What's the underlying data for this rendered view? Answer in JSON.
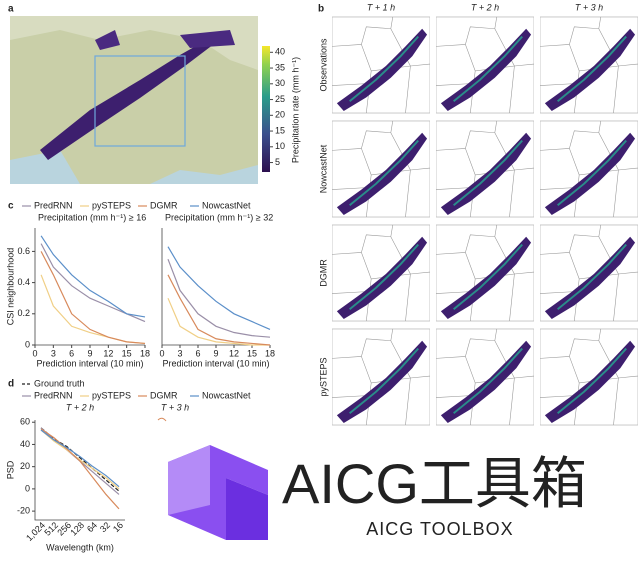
{
  "panels": {
    "a": "a",
    "b": "b",
    "c": "c",
    "d": "d"
  },
  "colorbar": {
    "label": "Precipitation rate (mm h⁻¹)",
    "lim": [
      2,
      42
    ],
    "ticks": [
      5,
      10,
      15,
      20,
      25,
      30,
      35,
      40
    ]
  },
  "columns": [
    "T + 1 h",
    "T + 2 h",
    "T + 3 h"
  ],
  "rows": [
    "Observations",
    "NowcastNet",
    "DGMR",
    "pySTEPS"
  ],
  "panel_d_right_title": "T + 3 h",
  "watermark": {
    "title": "AICG工具箱",
    "subtitle": "AICG TOOLBOX"
  },
  "chart_data": [
    {
      "type": "line",
      "title": "Precipitation (mm h⁻¹) ≥ 16",
      "x_label": "Prediction interval (10 min)",
      "y_label": "CSI neighbourhood",
      "x": [
        1,
        3,
        6,
        9,
        12,
        15,
        18
      ],
      "xlim": [
        0,
        18
      ],
      "xticks": [
        0,
        3,
        6,
        9,
        12,
        15,
        18
      ],
      "ylim": [
        0,
        0.75
      ],
      "yticks": [
        0,
        0.2,
        0.4,
        0.6
      ],
      "series": [
        {
          "name": "PredRNN",
          "color": "#9a8fa8",
          "values": [
            0.65,
            0.5,
            0.38,
            0.3,
            0.25,
            0.2,
            0.15
          ]
        },
        {
          "name": "pySTEPS",
          "color": "#f0cf86",
          "values": [
            0.45,
            0.25,
            0.12,
            0.08,
            0.05,
            0.02,
            0.01
          ]
        },
        {
          "name": "DGMR",
          "color": "#d88a5c",
          "values": [
            0.6,
            0.45,
            0.2,
            0.1,
            0.05,
            0.02,
            0.01
          ]
        },
        {
          "name": "NowcastNet",
          "color": "#5b8fc9",
          "values": [
            0.7,
            0.58,
            0.45,
            0.35,
            0.28,
            0.2,
            0.18
          ]
        }
      ]
    },
    {
      "type": "line",
      "title": "Precipitation (mm h⁻¹) ≥ 32",
      "x_label": "Prediction interval (10 min)",
      "x": [
        1,
        3,
        6,
        9,
        12,
        15,
        18
      ],
      "xlim": [
        0,
        18
      ],
      "xticks": [
        0,
        3,
        6,
        9,
        12,
        15,
        18
      ],
      "ylim": [
        0,
        0.75
      ],
      "series": [
        {
          "name": "PredRNN",
          "color": "#9a8fa8",
          "values": [
            0.55,
            0.35,
            0.2,
            0.12,
            0.08,
            0.06,
            0.05
          ]
        },
        {
          "name": "pySTEPS",
          "color": "#f0cf86",
          "values": [
            0.3,
            0.12,
            0.05,
            0.02,
            0.01,
            0,
            0
          ]
        },
        {
          "name": "DGMR",
          "color": "#d88a5c",
          "values": [
            0.45,
            0.3,
            0.1,
            0.04,
            0.02,
            0.01,
            0
          ]
        },
        {
          "name": "NowcastNet",
          "color": "#5b8fc9",
          "values": [
            0.63,
            0.5,
            0.38,
            0.28,
            0.2,
            0.15,
            0.1
          ]
        }
      ]
    },
    {
      "type": "line",
      "title": "T + 2 h",
      "x_label": "Wavelength (km)",
      "y_label": "PSD",
      "categories": [
        "1,024",
        "512",
        "256",
        "128",
        "64",
        "32",
        "16"
      ],
      "ylim": [
        -28,
        62
      ],
      "yticks": [
        60,
        40,
        20,
        0,
        -20
      ],
      "series": [
        {
          "name": "Ground truth",
          "color": "#222222",
          "dashed": true,
          "values": [
            55,
            45,
            38,
            28,
            18,
            8,
            -2
          ]
        },
        {
          "name": "PredRNN",
          "color": "#9a8fa8",
          "values": [
            55,
            44,
            35,
            25,
            15,
            5,
            -5
          ]
        },
        {
          "name": "pySTEPS",
          "color": "#f0cf86",
          "values": [
            53,
            43,
            35,
            26,
            18,
            10,
            0
          ]
        },
        {
          "name": "DGMR",
          "color": "#d88a5c",
          "values": [
            54,
            46,
            36,
            25,
            10,
            -5,
            -18
          ]
        },
        {
          "name": "NowcastNet",
          "color": "#5b8fc9",
          "values": [
            53,
            44,
            37,
            29,
            20,
            12,
            2
          ]
        }
      ]
    }
  ]
}
